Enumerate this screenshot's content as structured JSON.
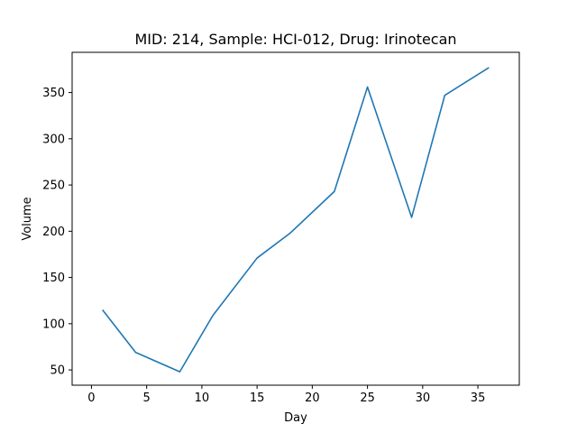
{
  "chart_data": {
    "type": "line",
    "title": "MID: 214, Sample: HCI-012, Drug: Irinotecan",
    "xlabel": "Day",
    "ylabel": "Volume",
    "xlim": [
      -1.75,
      38.75
    ],
    "ylim": [
      33.5,
      393.5
    ],
    "xticks": [
      0,
      5,
      10,
      15,
      20,
      25,
      30,
      35
    ],
    "yticks": [
      50,
      100,
      150,
      200,
      250,
      300,
      350
    ],
    "grid": false,
    "series": [
      {
        "color": "#1f77b4",
        "x": [
          1,
          4,
          8,
          11,
          15,
          18,
          22,
          25,
          29,
          32,
          36
        ],
        "y": [
          115,
          69,
          48,
          109,
          171,
          198,
          243,
          356,
          215,
          347,
          377
        ]
      }
    ]
  }
}
